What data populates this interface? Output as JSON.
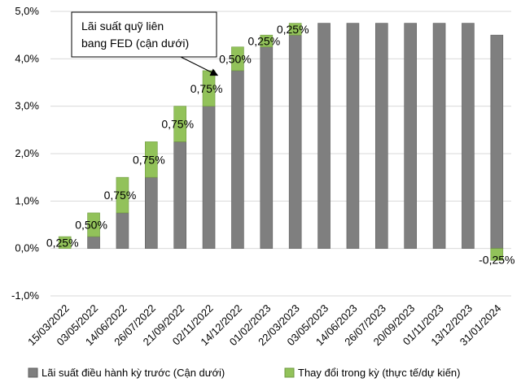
{
  "colors": {
    "base": "#7f7f7f",
    "base_stroke": "#5f5f5f",
    "change": "#92c25a",
    "change_stroke": "#6f9a40",
    "grid": "#d9d9d9"
  },
  "chart_data": {
    "type": "bar",
    "stacked": true,
    "categories": [
      "15/03/2022",
      "03/05/2022",
      "14/06/2022",
      "26/07/2022",
      "21/09/2022",
      "02/11/2022",
      "14/12/2022",
      "01/02/2023",
      "22/03/2023",
      "03/05/2023",
      "14/06/2023",
      "26/07/2023",
      "20/09/2023",
      "01/11/2023",
      "13/12/2023",
      "31/01/2024"
    ],
    "series": [
      {
        "name": "Lãi suất điều hành kỳ trước (Cận dưới)",
        "values": [
          0,
          0.25,
          0.75,
          1.5,
          2.25,
          3.0,
          3.75,
          4.25,
          4.5,
          4.75,
          4.75,
          4.75,
          4.75,
          4.75,
          4.75,
          4.5
        ]
      },
      {
        "name": "Thay đổi trong kỳ (thực tế/dự kiến)",
        "values": [
          0.25,
          0.5,
          0.75,
          0.75,
          0.75,
          0.75,
          0.5,
          0.25,
          0.25,
          0,
          0,
          0,
          0,
          0,
          0,
          -0.25
        ]
      }
    ],
    "data_labels": [
      "0,25%",
      "0,50%",
      "0,75%",
      "0,75%",
      "0,75%",
      "0,75%",
      "0,50%",
      "0,25%",
      "0,25%",
      "",
      "",
      "",
      "",
      "",
      "",
      "-0,25%"
    ],
    "ylim": [
      -1.0,
      5.0
    ],
    "yticks": [
      -1.0,
      0.0,
      1.0,
      2.0,
      3.0,
      4.0,
      5.0
    ],
    "ytick_labels": [
      "-1,0%",
      "0,0%",
      "1,0%",
      "2,0%",
      "3,0%",
      "4,0%",
      "5,0%"
    ],
    "grid": true,
    "legend_position": "bottom",
    "annotation": {
      "lines": [
        "Lãi suất quỹ liên",
        "bang FED (cận dưới)"
      ],
      "points_to_category": "02/11/2022"
    },
    "title": "",
    "xlabel": "",
    "ylabel": ""
  }
}
